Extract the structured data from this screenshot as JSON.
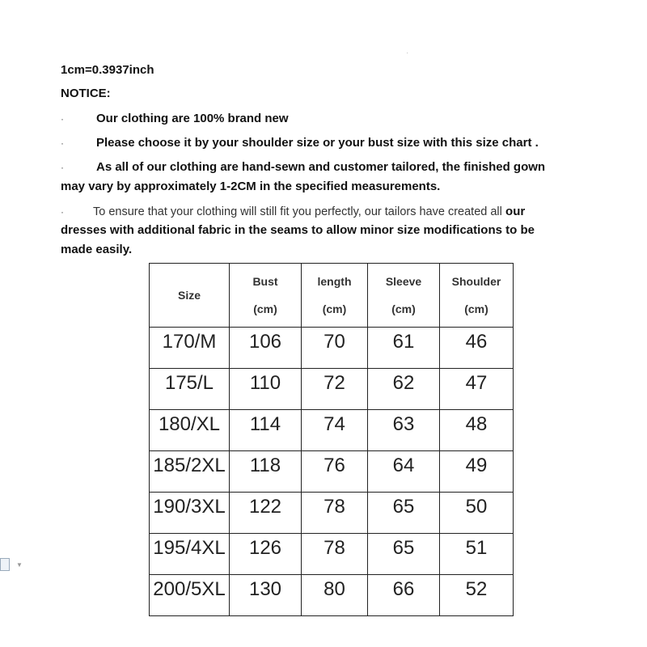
{
  "conversion": "1cm=0.3937inch",
  "notice_title": "NOTICE:",
  "bullet": "·",
  "notices": [
    "Our clothing are 100% brand new",
    "Please choose it by your shoulder size or your bust size with this size chart .",
    "As all of our clothing are hand-sewn and customer tailored, the finished gown",
    "may vary by approximately 1-2CM in the specified measurements.",
    "To ensure that your clothing will still fit you perfectly, our tailors have created all",
    "our",
    "dresses with additional fabric in the seams to allow minor size modifications to be",
    "made easily."
  ],
  "table": {
    "headers": [
      {
        "name": "Size",
        "unit": ""
      },
      {
        "name": "Bust",
        "unit": "(cm)"
      },
      {
        "name": "length",
        "unit": "(cm)"
      },
      {
        "name": "Sleeve",
        "unit": "(cm)"
      },
      {
        "name": "Shoulder",
        "unit": "(cm)"
      }
    ],
    "rows": [
      [
        "170/M",
        "106",
        "70",
        "61",
        "46"
      ],
      [
        "175/L",
        "110",
        "72",
        "62",
        "47"
      ],
      [
        "180/XL",
        "114",
        "74",
        "63",
        "48"
      ],
      [
        "185/2XL",
        "118",
        "76",
        "64",
        "49"
      ],
      [
        "190/3XL",
        "122",
        "78",
        "65",
        "50"
      ],
      [
        "195/4XL",
        "126",
        "78",
        "65",
        "51"
      ],
      [
        "200/5XL",
        "130",
        "80",
        "66",
        "52"
      ]
    ]
  }
}
